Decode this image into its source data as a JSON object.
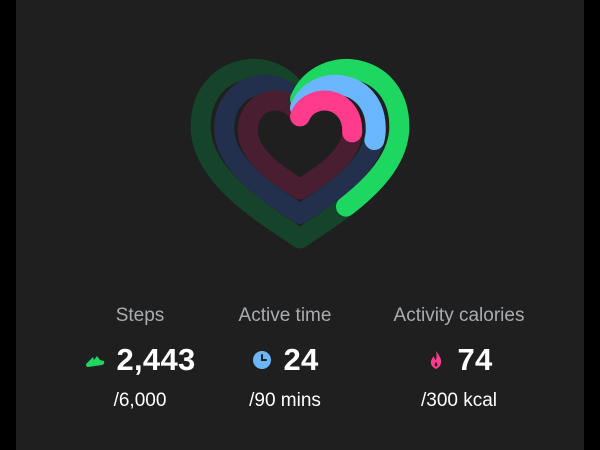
{
  "colors": {
    "background": "#1f1f1f",
    "steps": "#1ed760",
    "active_time": "#6ab7ff",
    "calories": "#ff3b8b",
    "steps_track": "#16442a",
    "active_time_track": "#22304d",
    "calories_track": "#4a1e31"
  },
  "rings": {
    "steps_progress": 0.407,
    "active_time_progress": 0.267,
    "calories_progress": 0.247
  },
  "stats": [
    {
      "label": "Steps",
      "value": "2,443",
      "goal": "/6,000",
      "icon": "shoe-icon"
    },
    {
      "label": "Active time",
      "value": "24",
      "goal": "/90 mins",
      "icon": "clock-icon"
    },
    {
      "label": "Activity calories",
      "value": "74",
      "goal": "/300 kcal",
      "icon": "flame-icon"
    }
  ]
}
